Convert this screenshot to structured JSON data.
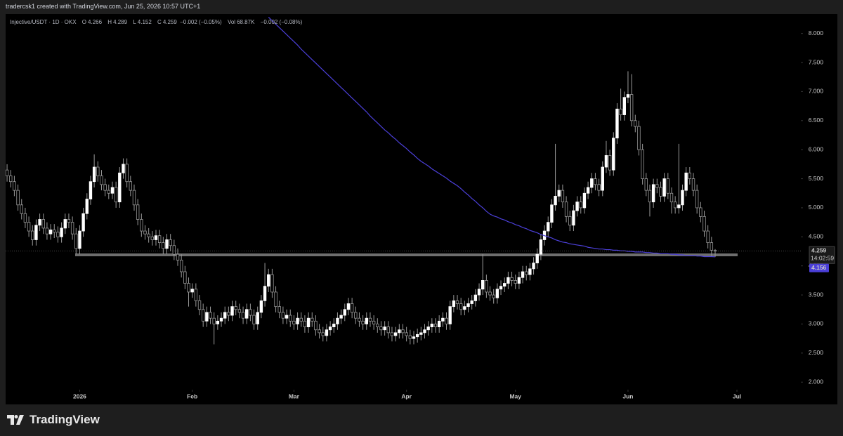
{
  "header": {
    "title": "tradercsk1 created with TradingView.com, Jun 25, 2026 10:57 UTC+1"
  },
  "legend": {
    "symbol": "Injective/USDT · 1D · OKX",
    "keys": [
      "O",
      "H",
      "L",
      "C"
    ],
    "change": "−0.002 (−0.05%)",
    "volume_key": "Vol",
    "volume": "68.87K",
    "volume_change": "−0.002 (−0.08%)"
  },
  "footer": {
    "brand": "TradingView"
  },
  "chart_data": {
    "type": "candlestick",
    "up_color": "#ffffff",
    "down_color": "#000000",
    "wick_color": "#9a9a9a",
    "ma_color": "#4b3fd8",
    "level_color": "#8a8a8a",
    "countdown": "14:02:59",
    "level": 4.19,
    "open": [
      5.65,
      5.55,
      5.45,
      5.3,
      5.05,
      4.9,
      4.75,
      4.6,
      4.45,
      4.7,
      4.8,
      4.65,
      4.55,
      4.62,
      4.58,
      4.5,
      4.65,
      4.8,
      4.75,
      4.55,
      4.3,
      4.6,
      4.9,
      5.15,
      5.45,
      5.7,
      5.55,
      5.4,
      5.3,
      5.25,
      5.35,
      5.1,
      5.6,
      5.75,
      5.45,
      5.3,
      5.05,
      4.8,
      4.6,
      4.55,
      4.5,
      4.45,
      4.52,
      4.4,
      4.3,
      4.45,
      4.35,
      4.2,
      4.1,
      3.9,
      3.7,
      3.55,
      3.6,
      3.4,
      3.25,
      3.05,
      3.2,
      3.1,
      3.0,
      3.05,
      3.1,
      3.2,
      3.15,
      3.3,
      3.25,
      3.2,
      3.1,
      3.25,
      3.15,
      3.0,
      3.2,
      3.4,
      3.65,
      3.85,
      3.55,
      3.3,
      3.2,
      3.1,
      3.15,
      3.05,
      3.0,
      3.1,
      3.05,
      2.95,
      3.1,
      3.05,
      2.9,
      2.85,
      2.8,
      2.9,
      2.95,
      3.0,
      3.1,
      3.15,
      3.25,
      3.35,
      3.2,
      3.1,
      3.05,
      3.0,
      3.1,
      3.05,
      3.0,
      2.95,
      2.9,
      2.95,
      2.85,
      2.8,
      2.85,
      2.9,
      2.85,
      2.8,
      2.75,
      2.78,
      2.82,
      2.85,
      2.9,
      2.95,
      3.0,
      2.95,
      3.05,
      3.1,
      3.0,
      3.3,
      3.4,
      3.35,
      3.25,
      3.3,
      3.35,
      3.4,
      3.5,
      3.6,
      3.75,
      3.55,
      3.5,
      3.45,
      3.6,
      3.65,
      3.7,
      3.8,
      3.75,
      3.7,
      3.8,
      3.9,
      3.85,
      3.95,
      4.05,
      4.2,
      4.45,
      4.6,
      4.75,
      5.05,
      5.2,
      5.3,
      5.1,
      4.85,
      4.7,
      4.95,
      5.1,
      5.0,
      5.25,
      5.35,
      5.5,
      5.4,
      5.3,
      5.7,
      5.9,
      5.65,
      6.2,
      6.7,
      6.6,
      6.9,
      6.95,
      6.5,
      6.4,
      6.0,
      5.5,
      5.3,
      5.1,
      5.4,
      5.35,
      5.2,
      5.5,
      5.25,
      5.1,
      5.0,
      5.05,
      5.3,
      5.6,
      5.5,
      5.3,
      5.0,
      4.85,
      4.6,
      4.4,
      4.266
    ],
    "high": [
      5.75,
      5.65,
      5.55,
      5.4,
      5.15,
      5.0,
      4.85,
      4.7,
      4.8,
      4.9,
      4.9,
      4.75,
      4.72,
      4.72,
      4.68,
      4.75,
      4.9,
      4.9,
      4.85,
      4.65,
      4.7,
      5.0,
      5.25,
      5.55,
      5.92,
      5.8,
      5.65,
      5.5,
      5.4,
      5.45,
      5.45,
      5.7,
      5.85,
      5.85,
      5.55,
      5.4,
      5.15,
      4.9,
      4.7,
      4.65,
      4.6,
      4.62,
      4.62,
      4.5,
      4.55,
      4.55,
      4.45,
      4.3,
      4.2,
      4.0,
      3.8,
      3.7,
      3.7,
      3.5,
      3.35,
      3.3,
      3.3,
      3.2,
      3.15,
      3.2,
      3.3,
      3.3,
      3.4,
      3.4,
      3.35,
      3.3,
      3.35,
      3.35,
      3.25,
      3.3,
      3.5,
      4.05,
      3.95,
      3.95,
      3.65,
      3.4,
      3.3,
      3.25,
      3.25,
      3.15,
      3.2,
      3.2,
      3.15,
      3.2,
      3.2,
      3.15,
      3.0,
      2.95,
      3.0,
      3.05,
      3.1,
      3.2,
      3.25,
      3.35,
      3.45,
      3.45,
      3.3,
      3.2,
      3.15,
      3.2,
      3.2,
      3.15,
      3.1,
      3.05,
      3.05,
      3.05,
      2.95,
      2.95,
      3.0,
      3.0,
      2.95,
      2.9,
      2.88,
      2.92,
      2.95,
      3.0,
      3.05,
      3.1,
      3.1,
      3.15,
      3.2,
      3.2,
      3.4,
      3.5,
      3.5,
      3.45,
      3.4,
      3.45,
      3.5,
      3.6,
      3.7,
      4.2,
      3.85,
      3.65,
      3.6,
      3.7,
      3.75,
      3.8,
      3.9,
      3.9,
      3.85,
      3.9,
      4.0,
      4.0,
      4.05,
      4.15,
      4.3,
      4.55,
      4.7,
      4.85,
      5.15,
      6.1,
      5.4,
      5.4,
      5.2,
      4.95,
      5.05,
      5.2,
      5.2,
      5.35,
      5.45,
      5.6,
      5.6,
      5.5,
      5.8,
      6.15,
      6.0,
      6.3,
      6.8,
      7.05,
      7.0,
      7.35,
      7.3,
      6.6,
      6.5,
      6.1,
      5.6,
      5.4,
      5.5,
      5.5,
      5.45,
      5.6,
      5.6,
      5.35,
      5.2,
      6.1,
      5.4,
      5.7,
      5.7,
      5.6,
      5.4,
      5.1,
      4.95,
      4.7,
      4.5,
      4.289
    ],
    "low": [
      5.45,
      5.35,
      5.2,
      4.95,
      4.8,
      4.65,
      4.5,
      4.35,
      4.35,
      4.6,
      4.55,
      4.45,
      4.45,
      4.48,
      4.4,
      4.4,
      4.55,
      4.65,
      4.45,
      4.2,
      4.2,
      4.5,
      4.8,
      5.05,
      5.35,
      5.45,
      5.3,
      5.2,
      5.15,
      5.15,
      5.0,
      5.0,
      5.5,
      5.35,
      5.2,
      4.95,
      4.7,
      4.5,
      4.45,
      4.4,
      4.35,
      4.35,
      4.3,
      4.2,
      4.2,
      4.25,
      4.1,
      4.0,
      3.8,
      3.6,
      3.3,
      3.45,
      3.3,
      3.15,
      2.95,
      2.95,
      3.0,
      2.65,
      2.9,
      2.95,
      3.0,
      3.05,
      3.05,
      3.15,
      3.1,
      3.0,
      3.0,
      3.05,
      2.9,
      2.9,
      3.1,
      3.3,
      3.55,
      3.45,
      3.2,
      3.1,
      3.0,
      3.0,
      2.95,
      2.9,
      2.9,
      2.95,
      2.85,
      2.85,
      2.95,
      2.8,
      2.75,
      2.7,
      2.7,
      2.8,
      2.85,
      2.9,
      3.0,
      3.05,
      3.15,
      3.1,
      3.0,
      2.95,
      2.9,
      2.9,
      2.95,
      2.9,
      2.85,
      2.8,
      2.8,
      2.75,
      2.7,
      2.7,
      2.75,
      2.75,
      2.7,
      2.65,
      2.65,
      2.68,
      2.72,
      2.75,
      2.8,
      2.85,
      2.85,
      2.85,
      2.95,
      2.9,
      2.9,
      3.2,
      3.25,
      3.15,
      3.15,
      3.2,
      3.25,
      3.3,
      3.4,
      3.5,
      3.45,
      3.4,
      3.35,
      3.35,
      3.5,
      3.55,
      3.6,
      3.65,
      3.6,
      3.6,
      3.7,
      3.75,
      3.75,
      3.85,
      3.95,
      4.1,
      4.35,
      4.5,
      4.65,
      4.95,
      5.1,
      5.0,
      4.75,
      4.6,
      4.6,
      4.85,
      4.9,
      4.9,
      5.15,
      5.25,
      5.3,
      5.2,
      5.2,
      5.6,
      5.55,
      5.55,
      6.1,
      6.5,
      6.5,
      6.8,
      6.4,
      6.3,
      5.9,
      5.4,
      5.2,
      4.85,
      5.0,
      5.25,
      5.1,
      5.1,
      5.15,
      4.9,
      4.9,
      4.9,
      4.95,
      5.2,
      5.4,
      5.2,
      4.9,
      4.75,
      4.5,
      4.3,
      4.17,
      4.152
    ],
    "close": [
      5.55,
      5.45,
      5.3,
      5.05,
      4.9,
      4.75,
      4.6,
      4.45,
      4.7,
      4.8,
      4.65,
      4.55,
      4.62,
      4.58,
      4.5,
      4.65,
      4.8,
      4.75,
      4.55,
      4.3,
      4.6,
      4.9,
      5.15,
      5.45,
      5.7,
      5.55,
      5.4,
      5.3,
      5.25,
      5.35,
      5.1,
      5.6,
      5.75,
      5.45,
      5.3,
      5.05,
      4.8,
      4.6,
      4.55,
      4.5,
      4.45,
      4.52,
      4.4,
      4.3,
      4.45,
      4.35,
      4.2,
      4.1,
      3.9,
      3.7,
      3.55,
      3.6,
      3.4,
      3.25,
      3.05,
      3.2,
      3.1,
      3.0,
      3.05,
      3.1,
      3.2,
      3.15,
      3.3,
      3.25,
      3.2,
      3.1,
      3.25,
      3.15,
      3.0,
      3.2,
      3.4,
      3.65,
      3.85,
      3.55,
      3.3,
      3.2,
      3.1,
      3.15,
      3.05,
      3.0,
      3.1,
      3.05,
      2.95,
      3.1,
      3.05,
      2.9,
      2.85,
      2.8,
      2.9,
      2.95,
      3.0,
      3.1,
      3.15,
      3.25,
      3.35,
      3.2,
      3.1,
      3.05,
      3.0,
      3.1,
      3.05,
      3.0,
      2.95,
      2.9,
      2.95,
      2.85,
      2.8,
      2.85,
      2.9,
      2.85,
      2.8,
      2.75,
      2.78,
      2.82,
      2.85,
      2.9,
      2.95,
      3.0,
      2.95,
      3.05,
      3.1,
      3.0,
      3.3,
      3.4,
      3.35,
      3.25,
      3.3,
      3.35,
      3.4,
      3.5,
      3.6,
      3.75,
      3.55,
      3.5,
      3.45,
      3.6,
      3.65,
      3.7,
      3.8,
      3.75,
      3.7,
      3.8,
      3.9,
      3.85,
      3.95,
      4.05,
      4.2,
      4.45,
      4.6,
      4.75,
      5.05,
      5.2,
      5.3,
      5.1,
      4.85,
      4.7,
      4.95,
      5.1,
      5.0,
      5.25,
      5.35,
      5.5,
      5.4,
      5.3,
      5.7,
      5.9,
      5.65,
      6.2,
      6.7,
      6.6,
      6.9,
      6.95,
      6.5,
      6.4,
      6.0,
      5.5,
      5.3,
      5.1,
      5.4,
      5.35,
      5.2,
      5.5,
      5.25,
      5.1,
      5.0,
      5.05,
      5.3,
      5.6,
      5.5,
      5.3,
      5.0,
      4.85,
      4.6,
      4.4,
      4.27,
      4.259
    ],
    "ma": [
      null,
      null,
      null,
      null,
      null,
      null,
      null,
      null,
      null,
      null,
      null,
      null,
      null,
      null,
      null,
      null,
      null,
      null,
      null,
      null,
      null,
      null,
      null,
      null,
      null,
      null,
      null,
      null,
      null,
      null,
      null,
      null,
      null,
      null,
      null,
      null,
      null,
      null,
      null,
      null,
      null,
      null,
      null,
      null,
      null,
      null,
      null,
      null,
      null,
      null,
      null,
      null,
      null,
      null,
      null,
      null,
      null,
      null,
      null,
      null,
      null,
      null,
      null,
      null,
      null,
      null,
      null,
      null,
      null,
      null,
      null,
      null,
      8.28,
      8.22,
      8.16,
      8.1,
      8.04,
      7.98,
      7.92,
      7.86,
      7.8,
      7.73,
      7.67,
      7.61,
      7.55,
      7.49,
      7.43,
      7.37,
      7.31,
      7.25,
      7.19,
      7.13,
      7.07,
      7.01,
      6.95,
      6.89,
      6.83,
      6.77,
      6.71,
      6.65,
      6.58,
      6.52,
      6.46,
      6.4,
      6.34,
      6.29,
      6.23,
      6.18,
      6.12,
      6.07,
      6.02,
      5.96,
      5.91,
      5.85,
      5.8,
      5.76,
      5.72,
      5.67,
      5.63,
      5.59,
      5.55,
      5.51,
      5.46,
      5.42,
      5.38,
      5.33,
      5.27,
      5.22,
      5.16,
      5.11,
      5.05,
      5.0,
      4.94,
      4.89,
      4.86,
      4.84,
      4.81,
      4.79,
      4.76,
      4.74,
      4.71,
      4.69,
      4.66,
      4.64,
      4.61,
      4.59,
      4.57,
      4.54,
      4.52,
      4.5,
      4.48,
      4.45,
      4.43,
      4.41,
      4.4,
      4.38,
      4.37,
      4.36,
      4.35,
      4.34,
      4.32,
      4.31,
      4.3,
      4.29,
      4.29,
      4.28,
      4.28,
      4.27,
      4.27,
      4.26,
      4.26,
      4.25,
      4.25,
      4.24,
      4.24,
      4.24,
      4.23,
      4.23,
      4.22,
      4.22,
      4.21,
      4.21,
      4.21,
      4.2,
      4.2,
      4.19,
      4.19,
      4.18,
      4.18,
      4.18,
      4.17,
      4.17,
      4.16,
      4.16,
      4.16,
      4.156
    ],
    "xlim": [
      -0.4,
      218.6
    ],
    "xticks": [
      {
        "value": 20,
        "label": "2026"
      },
      {
        "value": 51,
        "label": "Feb"
      },
      {
        "value": 79,
        "label": "Mar"
      },
      {
        "value": 110,
        "label": "Apr"
      },
      {
        "value": 140,
        "label": "May"
      },
      {
        "value": 171,
        "label": "Jun"
      },
      {
        "value": 201,
        "label": "Jul"
      }
    ],
    "ylim": [
      1.87,
      8.31
    ],
    "yticks": [
      {
        "value": 2,
        "label": "2.000"
      },
      {
        "value": 2.5,
        "label": "2.500"
      },
      {
        "value": 3,
        "label": "3.000"
      },
      {
        "value": 3.5,
        "label": "3.500"
      },
      {
        "value": 4,
        "label": "4.000"
      },
      {
        "value": 4.5,
        "label": "4.500"
      },
      {
        "value": 5,
        "label": "5.000"
      },
      {
        "value": 5.5,
        "label": "5.500"
      },
      {
        "value": 6,
        "label": "6.000"
      },
      {
        "value": 6.5,
        "label": "6.500"
      },
      {
        "value": 7,
        "label": "7.000"
      },
      {
        "value": 7.5,
        "label": "7.500"
      },
      {
        "value": 8,
        "label": "8.000"
      }
    ]
  }
}
